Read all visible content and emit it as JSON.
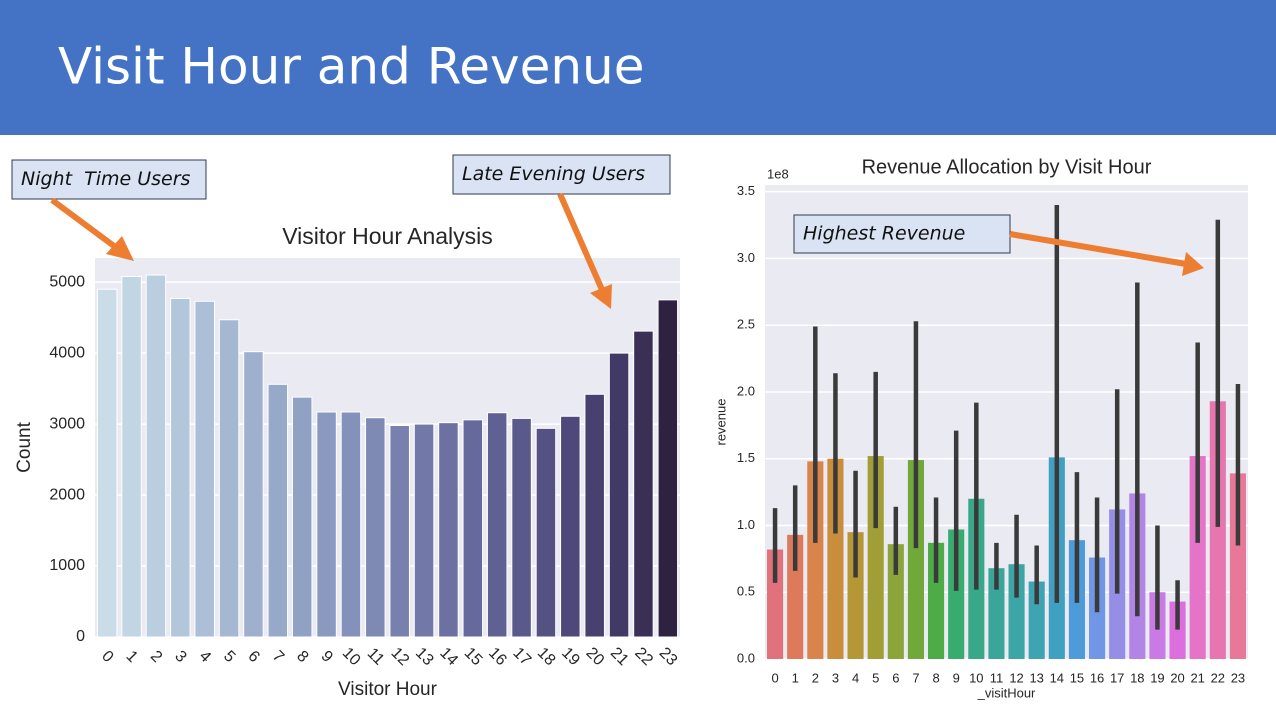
{
  "title": "Visit Hour and Revenue",
  "chart_data": [
    {
      "type": "bar",
      "title": "Visitor Hour Analysis",
      "xlabel": "Visitor Hour",
      "ylabel": "Count",
      "categories": [
        "0",
        "1",
        "2",
        "3",
        "4",
        "5",
        "6",
        "7",
        "8",
        "9",
        "10",
        "11",
        "12",
        "13",
        "14",
        "15",
        "16",
        "17",
        "18",
        "19",
        "20",
        "21",
        "22",
        "23"
      ],
      "values": [
        4900,
        5080,
        5100,
        4770,
        4730,
        4470,
        4020,
        3560,
        3380,
        3170,
        3170,
        3090,
        2980,
        3000,
        3020,
        3060,
        3160,
        3080,
        2940,
        3110,
        3420,
        4000,
        4310,
        4750
      ],
      "colors": [
        "#c9dce8",
        "#c2d5e3",
        "#bbcedf",
        "#b3c7da",
        "#acbfd6",
        "#a5b8d1",
        "#9eb0cd",
        "#97a9c8",
        "#90a1c4",
        "#8a99bf",
        "#8491ba",
        "#7e89b4",
        "#7881ae",
        "#7279a8",
        "#6c71a2",
        "#66699b",
        "#606193",
        "#5a598b",
        "#545183",
        "#4e497a",
        "#484170",
        "#413966",
        "#3a2f55",
        "#2e2240"
      ],
      "ylim": [
        0,
        5340
      ],
      "yticks": [
        0,
        1000,
        2000,
        3000,
        4000,
        5000
      ],
      "grid": true,
      "annotations": [
        "Night  Time Users",
        "Late Evening Users"
      ]
    },
    {
      "type": "bar",
      "title": "Revenue Allocation by Visit Hour",
      "xlabel": "_visitHour",
      "ylabel": "revenue",
      "offset_label": "1e8",
      "categories": [
        "0",
        "1",
        "2",
        "3",
        "4",
        "5",
        "6",
        "7",
        "8",
        "9",
        "10",
        "11",
        "12",
        "13",
        "14",
        "15",
        "16",
        "17",
        "18",
        "19",
        "20",
        "21",
        "22",
        "23"
      ],
      "values": [
        0.82,
        0.93,
        1.48,
        1.5,
        0.95,
        1.52,
        0.86,
        1.49,
        0.87,
        0.97,
        1.2,
        0.68,
        0.71,
        0.58,
        1.51,
        0.89,
        0.76,
        1.12,
        1.24,
        0.5,
        0.43,
        1.52,
        1.93,
        1.39
      ],
      "lower": [
        0.57,
        0.66,
        0.87,
        0.94,
        0.61,
        0.98,
        0.63,
        0.83,
        0.57,
        0.51,
        0.52,
        0.52,
        0.46,
        0.41,
        0.42,
        0.42,
        0.35,
        0.49,
        0.32,
        0.22,
        0.22,
        0.87,
        0.99,
        0.85
      ],
      "upper": [
        1.13,
        1.3,
        2.49,
        2.14,
        1.41,
        2.15,
        1.14,
        2.53,
        1.21,
        1.71,
        1.92,
        0.87,
        1.08,
        0.85,
        3.4,
        1.4,
        1.21,
        2.02,
        2.82,
        1.0,
        0.59,
        2.37,
        3.29,
        2.06
      ],
      "colors": [
        "#e1727b",
        "#dd7a5c",
        "#d9844a",
        "#c98d3b",
        "#b69735",
        "#a09e35",
        "#8ba53a",
        "#70a83a",
        "#4dac46",
        "#38ab6e",
        "#39a888",
        "#3aa699",
        "#3ca5a5",
        "#3ea3b2",
        "#40a0c1",
        "#4d9bd9",
        "#6f97e6",
        "#948ee6",
        "#b184e5",
        "#c97ae4",
        "#dc6fdd",
        "#e573c7",
        "#e775b0",
        "#e77898"
      ],
      "ylim": [
        0,
        3.55
      ],
      "yticks": [
        {
          "value": 0,
          "label": "0.0"
        },
        0.5,
        {
          "value": 1,
          "label": "1.0"
        },
        1.5,
        {
          "value": 2,
          "label": "2.0"
        },
        2.5,
        {
          "value": 3,
          "label": "3.0"
        },
        3.5
      ],
      "grid": true,
      "annotations": [
        "Highest Revenue"
      ]
    }
  ]
}
